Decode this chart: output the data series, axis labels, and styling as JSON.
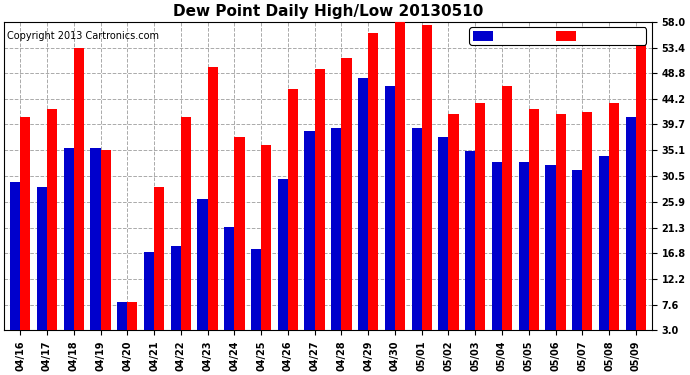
{
  "title": "Dew Point Daily High/Low 20130510",
  "copyright": "Copyright 2013 Cartronics.com",
  "dates": [
    "04/16",
    "04/17",
    "04/18",
    "04/19",
    "04/20",
    "04/21",
    "04/22",
    "04/23",
    "04/24",
    "04/25",
    "04/26",
    "04/27",
    "04/28",
    "04/29",
    "04/30",
    "05/01",
    "05/02",
    "05/03",
    "05/04",
    "05/05",
    "05/06",
    "05/07",
    "05/08",
    "05/09"
  ],
  "high": [
    41.0,
    42.5,
    53.4,
    35.1,
    8.0,
    28.5,
    41.0,
    50.0,
    37.5,
    36.0,
    46.0,
    49.5,
    51.5,
    56.0,
    58.0,
    57.5,
    41.5,
    43.5,
    46.5,
    42.5,
    41.5,
    42.0,
    43.5,
    54.0
  ],
  "low": [
    29.5,
    28.5,
    35.5,
    35.5,
    8.0,
    17.0,
    18.0,
    26.5,
    21.5,
    17.5,
    30.0,
    38.5,
    39.0,
    48.0,
    46.5,
    39.0,
    37.5,
    35.0,
    33.0,
    33.0,
    32.5,
    31.5,
    34.0,
    41.0
  ],
  "bar_width": 0.38,
  "high_color": "#ff0000",
  "low_color": "#0000cc",
  "background_color": "#ffffff",
  "grid_color": "#aaaaaa",
  "yticks": [
    3.0,
    7.6,
    12.2,
    16.8,
    21.3,
    25.9,
    30.5,
    35.1,
    39.7,
    44.2,
    48.8,
    53.4,
    58.0
  ],
  "ylim_min": 3.0,
  "ylim_max": 58.0,
  "title_fontsize": 11,
  "legend_fontsize": 8,
  "tick_fontsize": 7,
  "copyright_fontsize": 7
}
